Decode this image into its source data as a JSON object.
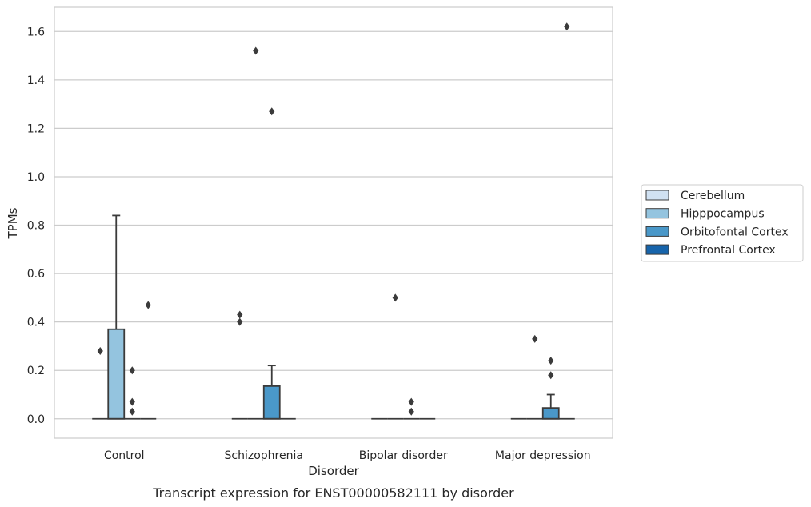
{
  "chart_data": {
    "type": "box",
    "title": "",
    "caption": "Transcript expression for ENST00000582111 by disorder",
    "xlabel": "Disorder",
    "ylabel": "TPMs",
    "categories": [
      "Control",
      "Schizophrenia",
      "Bipolar disorder",
      "Major depression"
    ],
    "ylim": [
      -0.08,
      1.7
    ],
    "yticks": [
      "0.0",
      "0.2",
      "0.4",
      "0.6",
      "0.8",
      "1.0",
      "1.2",
      "1.4",
      "1.6"
    ],
    "grid": true,
    "legend_position": "right",
    "series": [
      {
        "name": "Cerebellum",
        "color": "#d0e1f2",
        "boxes": [
          {
            "q1": 0,
            "median": 0,
            "q3": 0,
            "whisker_low": 0,
            "whisker_high": 0,
            "outliers": [
              0.28
            ]
          },
          {
            "q1": 0,
            "median": 0,
            "q3": 0,
            "whisker_low": 0,
            "whisker_high": 0,
            "outliers": [
              0.43,
              0.4
            ]
          },
          {
            "q1": 0,
            "median": 0,
            "q3": 0,
            "whisker_low": 0,
            "whisker_high": 0,
            "outliers": []
          },
          {
            "q1": 0,
            "median": 0,
            "q3": 0,
            "whisker_low": 0,
            "whisker_high": 0,
            "outliers": []
          }
        ]
      },
      {
        "name": "Hipppocampus",
        "color": "#94c4df",
        "boxes": [
          {
            "q1": 0,
            "median": 0,
            "q3": 0.37,
            "whisker_low": 0,
            "whisker_high": 0.84,
            "outliers": []
          },
          {
            "q1": 0,
            "median": 0,
            "q3": 0,
            "whisker_low": 0,
            "whisker_high": 0,
            "outliers": [
              1.52
            ]
          },
          {
            "q1": 0,
            "median": 0,
            "q3": 0,
            "whisker_low": 0,
            "whisker_high": 0,
            "outliers": [
              0.5
            ]
          },
          {
            "q1": 0,
            "median": 0,
            "q3": 0,
            "whisker_low": 0,
            "whisker_high": 0,
            "outliers": [
              0.33
            ]
          }
        ]
      },
      {
        "name": "Orbitofontal Cortex",
        "color": "#4a98c9",
        "boxes": [
          {
            "q1": 0,
            "median": 0,
            "q3": 0,
            "whisker_low": 0,
            "whisker_high": 0,
            "outliers": [
              0.2,
              0.07,
              0.03
            ]
          },
          {
            "q1": 0,
            "median": 0,
            "q3": 0.135,
            "whisker_low": 0,
            "whisker_high": 0.22,
            "outliers": [
              1.27
            ]
          },
          {
            "q1": 0,
            "median": 0,
            "q3": 0,
            "whisker_low": 0,
            "whisker_high": 0,
            "outliers": [
              0.07,
              0.03
            ]
          },
          {
            "q1": 0,
            "median": 0,
            "q3": 0.045,
            "whisker_low": 0,
            "whisker_high": 0.1,
            "outliers": [
              0.24,
              0.18
            ]
          }
        ]
      },
      {
        "name": "Prefrontal Cortex",
        "color": "#1764ab",
        "boxes": [
          {
            "q1": 0,
            "median": 0,
            "q3": 0,
            "whisker_low": 0,
            "whisker_high": 0,
            "outliers": [
              0.47
            ]
          },
          {
            "q1": 0,
            "median": 0,
            "q3": 0,
            "whisker_low": 0,
            "whisker_high": 0,
            "outliers": []
          },
          {
            "q1": 0,
            "median": 0,
            "q3": 0,
            "whisker_low": 0,
            "whisker_high": 0,
            "outliers": []
          },
          {
            "q1": 0,
            "median": 0,
            "q3": 0,
            "whisker_low": 0,
            "whisker_high": 0,
            "outliers": [
              1.62
            ]
          }
        ]
      }
    ]
  },
  "colors": {
    "grid": "#cccccc",
    "frame": "#cccccc",
    "box_edge": "#3b3b3b",
    "outlier": "#3b3b3b"
  }
}
